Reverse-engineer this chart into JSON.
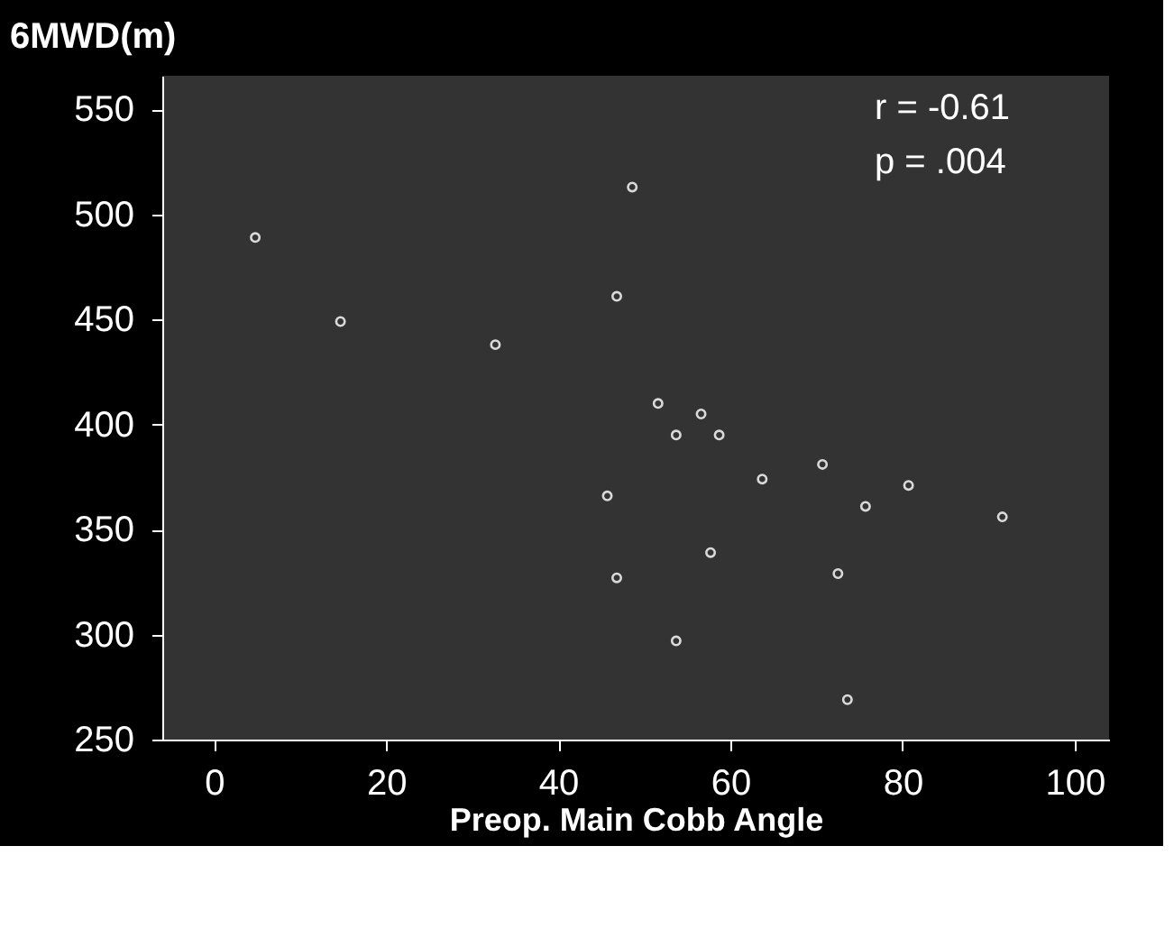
{
  "chart_data": {
    "type": "scatter",
    "xlabel": "Preop. Main Cobb Angle",
    "ylabel": "6MWD(m)",
    "annotations": [
      "r = -0.61",
      "p = .004"
    ],
    "x": [
      4.8,
      14.7,
      32.7,
      48.6,
      46.8,
      51.6,
      56.6,
      53.7,
      58.7,
      45.7,
      46.8,
      53.7,
      57.7,
      63.7,
      70.7,
      80.7,
      75.7,
      91.6,
      72.5,
      73.6
    ],
    "series": [
      {
        "color": "#d9d9d9",
        "values": [
          489,
          449,
          438,
          513,
          461,
          410,
          405,
          395,
          395,
          366,
          327,
          297,
          339,
          374,
          381,
          371,
          361,
          356,
          329,
          269
        ]
      }
    ],
    "xlim": [
      -6,
      104
    ],
    "ylim": [
      250,
      566
    ],
    "xticks": [
      0,
      20,
      40,
      60,
      80,
      100
    ],
    "yticks": [
      250,
      300,
      350,
      400,
      450,
      500,
      550
    ],
    "marker": "circle",
    "grid": false,
    "legend": false
  }
}
